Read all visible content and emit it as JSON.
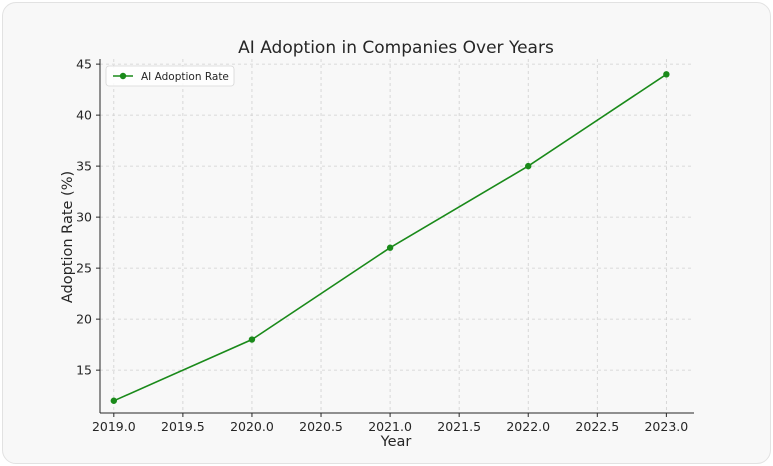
{
  "chart_data": {
    "type": "line",
    "title": "AI Adoption in Companies Over Years",
    "xlabel": "Year",
    "ylabel": "Adoption Rate (%)",
    "xlim": [
      2018.9,
      2023.2
    ],
    "ylim": [
      10.8,
      45.5
    ],
    "xticks": [
      2019.0,
      2019.5,
      2020.0,
      2020.5,
      2021.0,
      2021.5,
      2022.0,
      2022.5,
      2023.0
    ],
    "xtick_labels": [
      "2019.0",
      "2019.5",
      "2020.0",
      "2020.5",
      "2021.0",
      "2021.5",
      "2022.0",
      "2022.5",
      "2023.0"
    ],
    "yticks": [
      15,
      20,
      25,
      30,
      35,
      40,
      45
    ],
    "ytick_labels": [
      "15",
      "20",
      "25",
      "30",
      "35",
      "40",
      "45"
    ],
    "grid": true,
    "legend_position": "top-left",
    "series": [
      {
        "name": "AI Adoption Rate",
        "color": "#1a8a1a",
        "marker": "circle",
        "x": [
          2019,
          2020,
          2021,
          2022,
          2023
        ],
        "y": [
          12,
          18,
          27,
          35,
          44
        ]
      }
    ]
  }
}
